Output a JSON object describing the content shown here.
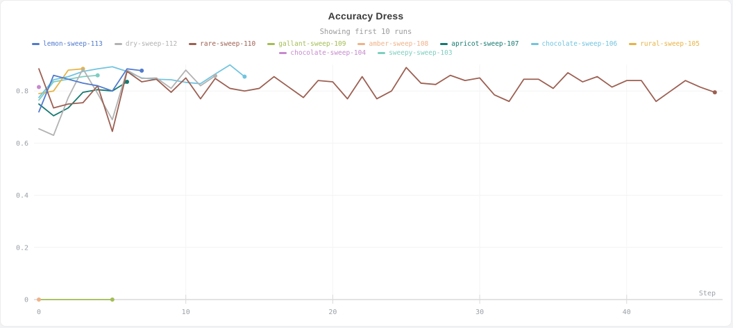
{
  "header": {
    "title": "Accuracy Dress",
    "subtitle": "Showing first 10 runs"
  },
  "legend": {
    "rows": [
      [
        "lemon-sweep-113",
        "dry-sweep-112",
        "rare-sweep-110",
        "gallant-sweep-109",
        "amber-sweep-108",
        "apricot-sweep-107",
        "chocolate-sweep-106",
        "rural-sweep-105"
      ],
      [
        "chocolate-sweep-104",
        "sweepy-sweep-103"
      ]
    ]
  },
  "axes": {
    "x_label": "Step",
    "x_ticks": [
      0,
      10,
      20,
      30,
      40
    ],
    "y_ticks": [
      0,
      0.2,
      0.4,
      0.6,
      0.8
    ]
  },
  "chart_data": {
    "type": "line",
    "title": "Accuracy Dress",
    "subtitle": "Showing first 10 runs",
    "xlabel": "Step",
    "ylabel": "",
    "xlim": [
      0,
      46.5
    ],
    "ylim": [
      0,
      1.0
    ],
    "grid": true,
    "legend_position": "top",
    "x_step": 1,
    "series": [
      {
        "name": "gallant-sweep-109",
        "color": "#a3bd54",
        "values": [
          0,
          0,
          0,
          0,
          0,
          0
        ]
      },
      {
        "name": "amber-sweep-108",
        "color": "#efb288",
        "values": [
          0
        ]
      },
      {
        "name": "sweepy-sweep-103",
        "color": "#7dcec0",
        "values": [
          0.765,
          0.835,
          0.845,
          0.855,
          0.86
        ]
      },
      {
        "name": "chocolate-sweep-104",
        "color": "#c689cd",
        "values": [
          0.815
        ]
      },
      {
        "name": "rural-sweep-105",
        "color": "#e7b345",
        "values": [
          0.79,
          0.8,
          0.88,
          0.885
        ]
      },
      {
        "name": "chocolate-sweep-106",
        "color": "#71c4e0",
        "values": [
          0.775,
          0.843,
          0.855,
          0.875,
          0.885,
          0.893,
          0.875,
          0.85,
          0.845,
          0.843,
          0.833,
          0.828,
          0.865,
          0.9,
          0.855
        ]
      },
      {
        "name": "apricot-sweep-107",
        "color": "#157970",
        "values": [
          0.75,
          0.705,
          0.735,
          0.795,
          0.805,
          0.8,
          0.835
        ]
      },
      {
        "name": "dry-sweep-112",
        "color": "#b2b2b2",
        "values": [
          0.655,
          0.63,
          0.775,
          0.885,
          0.79,
          0.69,
          0.88,
          0.848,
          0.85,
          0.81,
          0.88,
          0.82,
          0.858
        ]
      },
      {
        "name": "rare-sweep-110",
        "color": "#9c5f51",
        "values": [
          0.885,
          0.735,
          0.75,
          0.755,
          0.82,
          0.645,
          0.875,
          0.835,
          0.845,
          0.795,
          0.85,
          0.77,
          0.848,
          0.81,
          0.8,
          0.81,
          0.855,
          0.815,
          0.775,
          0.84,
          0.835,
          0.77,
          0.855,
          0.77,
          0.8,
          0.89,
          0.83,
          0.825,
          0.86,
          0.84,
          0.85,
          0.785,
          0.76,
          0.845,
          0.845,
          0.81,
          0.87,
          0.835,
          0.855,
          0.815,
          0.84,
          0.84,
          0.76,
          0.8,
          0.84,
          0.815,
          0.795
        ]
      },
      {
        "name": "lemon-sweep-113",
        "color": "#507acd",
        "values": [
          0.72,
          0.86,
          0.845,
          0.83,
          0.82,
          0.8,
          0.885,
          0.878
        ]
      }
    ]
  }
}
